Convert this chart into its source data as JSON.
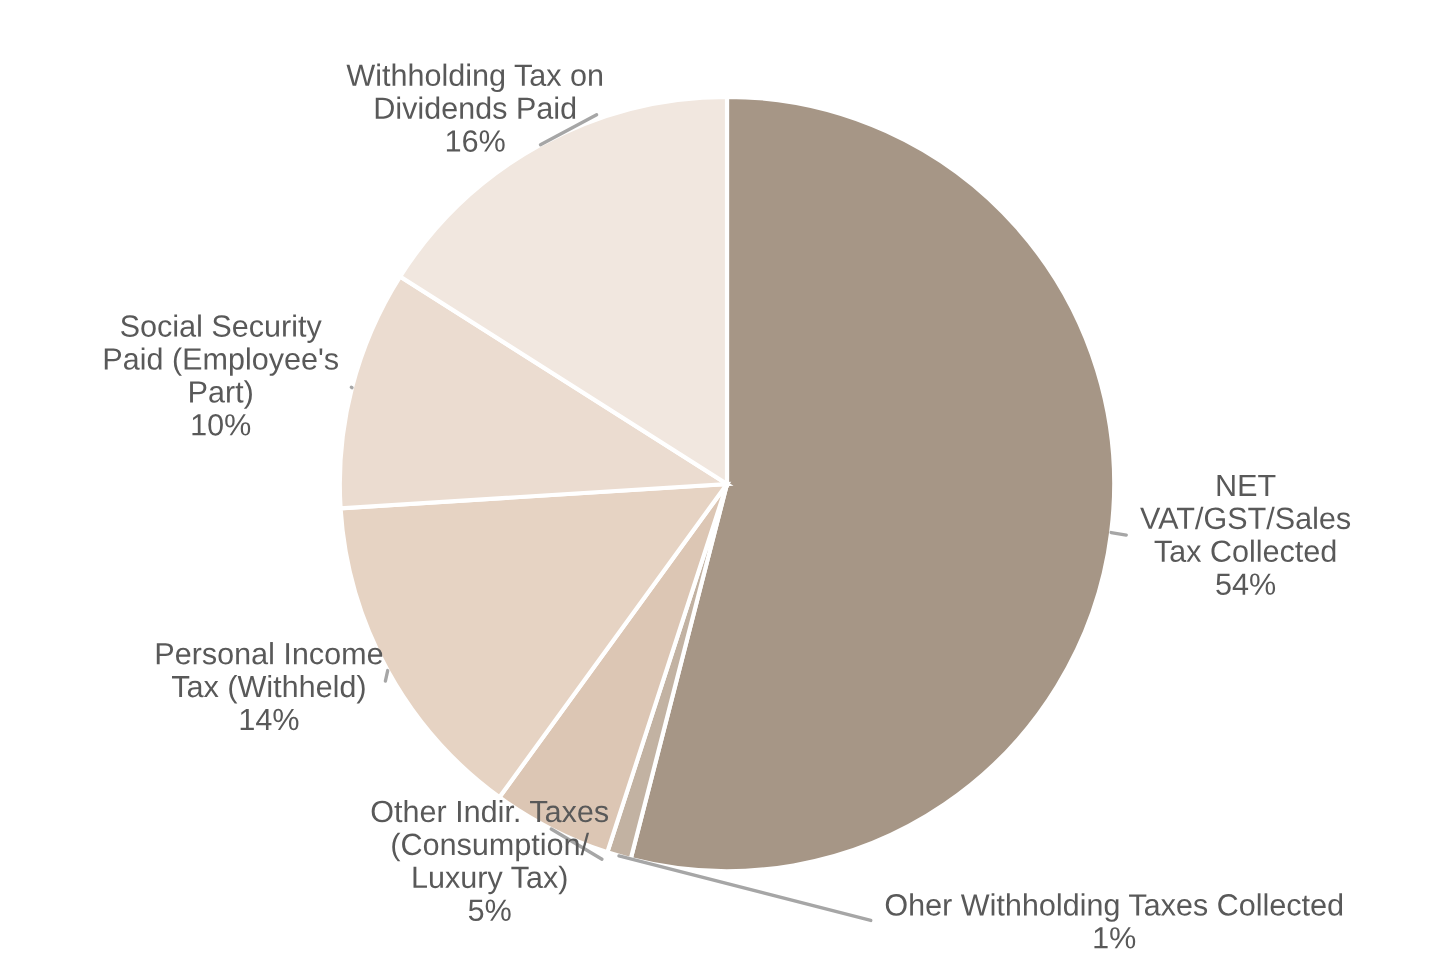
{
  "chart_data": {
    "type": "pie",
    "categories": [
      "NET\nVAT/GST/Sales\nTax Collected",
      "Oher Withholding Taxes Collected",
      "Other Indir. Taxes\n(Consumption/\nLuxury Tax)",
      "Personal Income\nTax (Withheld)",
      "Social Security\nPaid (Employee's\nPart)",
      "Withholding Tax on\nDividends Paid"
    ],
    "values": [
      54,
      1,
      5,
      14,
      10,
      16
    ],
    "value_labels": [
      "54%",
      "1%",
      "5%",
      "14%",
      "10%",
      "16%"
    ],
    "colors": [
      "#a69686",
      "#c2b2a2",
      "#dcc6b4",
      "#e6d3c3",
      "#ebdcd0",
      "#f1e7df"
    ]
  }
}
